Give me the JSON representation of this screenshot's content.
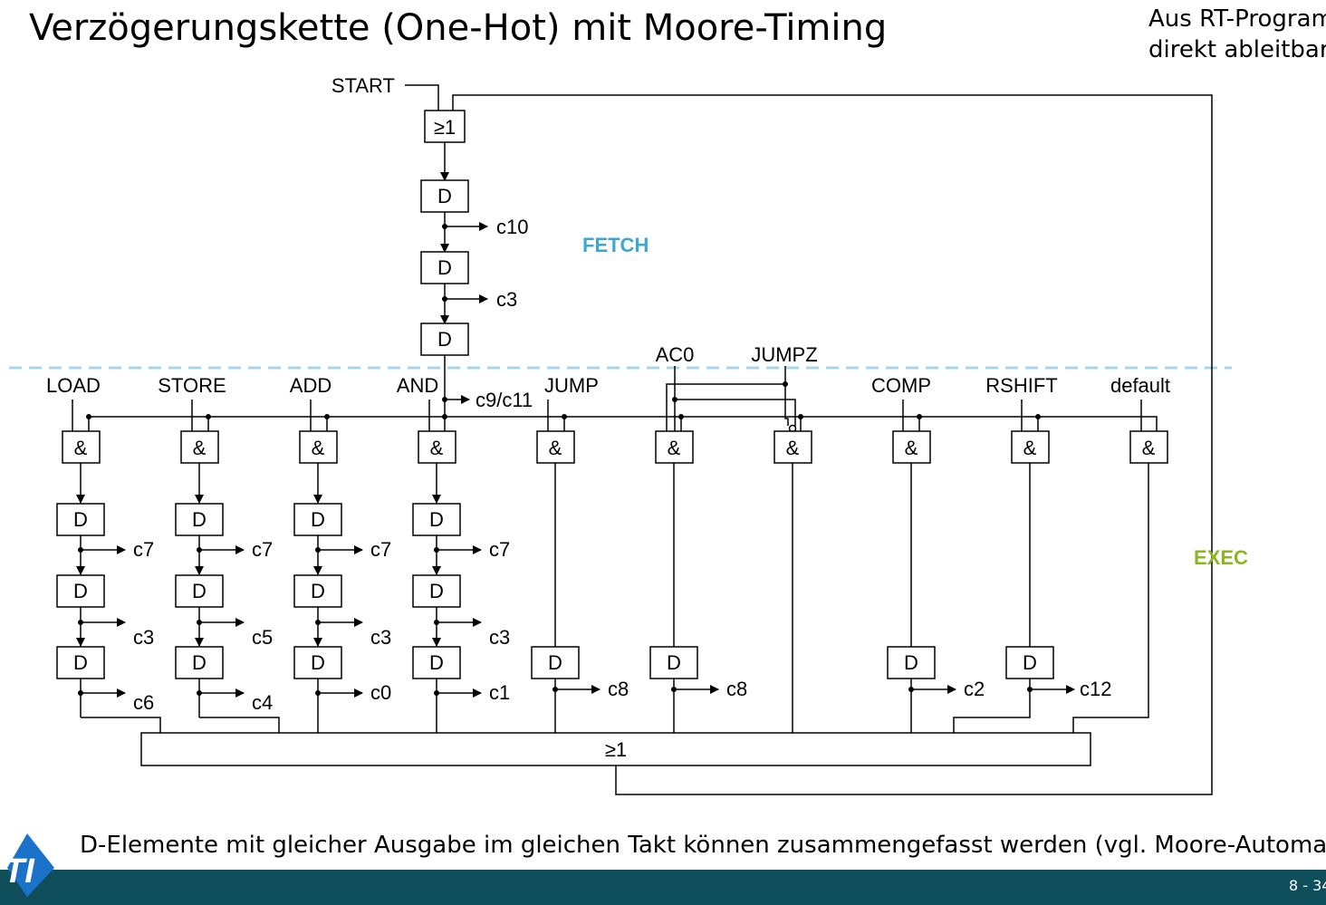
{
  "title": "Verzögerungskette (One-Hot) mit Moore-Timing",
  "note": "Aus RT-Program\ndirekt ableitbar",
  "footer": "D-Elemente mit gleicher Ausgabe im gleichen Takt können zusammengefasst werden (vgl. Moore-Automat)",
  "page_number": "8 - 34",
  "logo_text": "TI",
  "colors": {
    "fetch": "#3ea6d3",
    "exec": "#8db51e",
    "bar": "#0f4f5c",
    "dashed": "#a9d6ee"
  },
  "diagram": {
    "start_label": "START",
    "or_gate_label": "≥1",
    "d_label": "D",
    "and_label": "&",
    "fetch_label": "FETCH",
    "exec_label": "EXEC",
    "fetch_outputs": [
      "c10",
      "c3",
      "c9/c11"
    ],
    "cond_inputs": [
      "AC0",
      "JUMPZ"
    ],
    "instructions": [
      "LOAD",
      "STORE",
      "ADD",
      "AND",
      "JUMP",
      "COMP",
      "RSHIFT",
      "default"
    ],
    "chain_outputs": {
      "LOAD": [
        "c7",
        "c3",
        "c6"
      ],
      "STORE": [
        "c7",
        "c5",
        "c4"
      ],
      "ADD": [
        "c7",
        "c3",
        "c0"
      ],
      "AND": [
        "c7",
        "c3",
        "c1"
      ],
      "JUMP": [
        "c8"
      ],
      "AC0": [
        "c8"
      ],
      "COMP": [
        "c2"
      ],
      "RSHIFT": [
        "c12"
      ]
    }
  }
}
